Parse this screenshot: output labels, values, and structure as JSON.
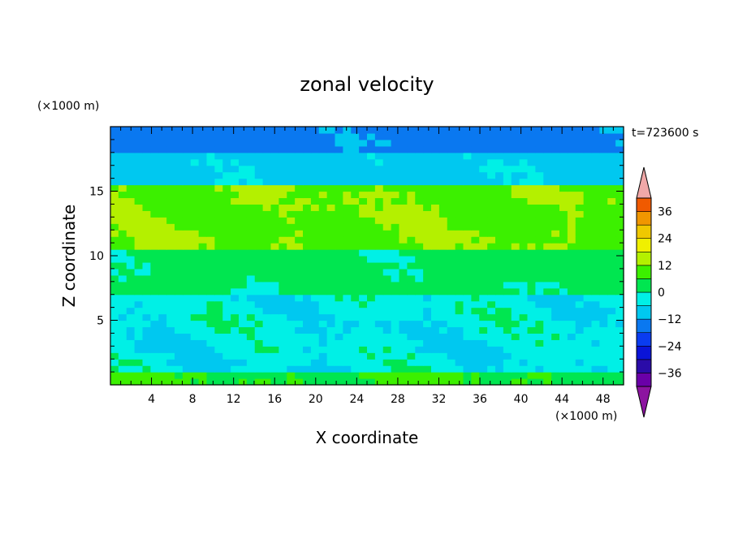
{
  "chart_data": {
    "type": "heatmap",
    "title": "zonal velocity",
    "xlabel": "X coordinate",
    "ylabel": "Z coordinate",
    "x_unit": "(×1000 m)",
    "y_unit": "(×1000 m)",
    "time_label": "t=723600 s",
    "xlim": [
      0,
      50
    ],
    "ylim": [
      0,
      20
    ],
    "x_ticks": [
      "4",
      "8",
      "12",
      "16",
      "20",
      "24",
      "28",
      "32",
      "36",
      "40",
      "44",
      "48"
    ],
    "y_ticks": [
      "5",
      "10",
      "15"
    ],
    "colorbar": {
      "labels": [
        "36",
        "24",
        "12",
        "0",
        "−12",
        "−24",
        "−36"
      ],
      "levels": [
        -42,
        -36,
        -30,
        -24,
        -18,
        -12,
        -6,
        0,
        6,
        12,
        18,
        24,
        30,
        36,
        42
      ],
      "colors": [
        "#6a00a8",
        "#2a0ca8",
        "#0a14d8",
        "#0a3cf0",
        "#0a78f0",
        "#00c8f0",
        "#00f0e6",
        "#00e650",
        "#3cf000",
        "#b4f000",
        "#f0f000",
        "#f0c800",
        "#f09600",
        "#f05a00",
        "#e61e00"
      ],
      "under_color": "#8c14a0",
      "over_color": "#f0a8a8"
    },
    "bands": [
      {
        "z_range": [
          18,
          20
        ],
        "u_min": -18,
        "u_max": -10
      },
      {
        "z_range": [
          15.3,
          18
        ],
        "u_min": -12,
        "u_max": -4
      },
      {
        "z_range": [
          10.5,
          15.3
        ],
        "u_min": 6,
        "u_max": 16
      },
      {
        "z_range": [
          7,
          10.5
        ],
        "u_min": -2,
        "u_max": 6
      },
      {
        "z_range": [
          1,
          7
        ],
        "u_min": -12,
        "u_max": 4
      },
      {
        "z_range": [
          0,
          1
        ],
        "u_min": 0,
        "u_max": 12
      }
    ]
  }
}
